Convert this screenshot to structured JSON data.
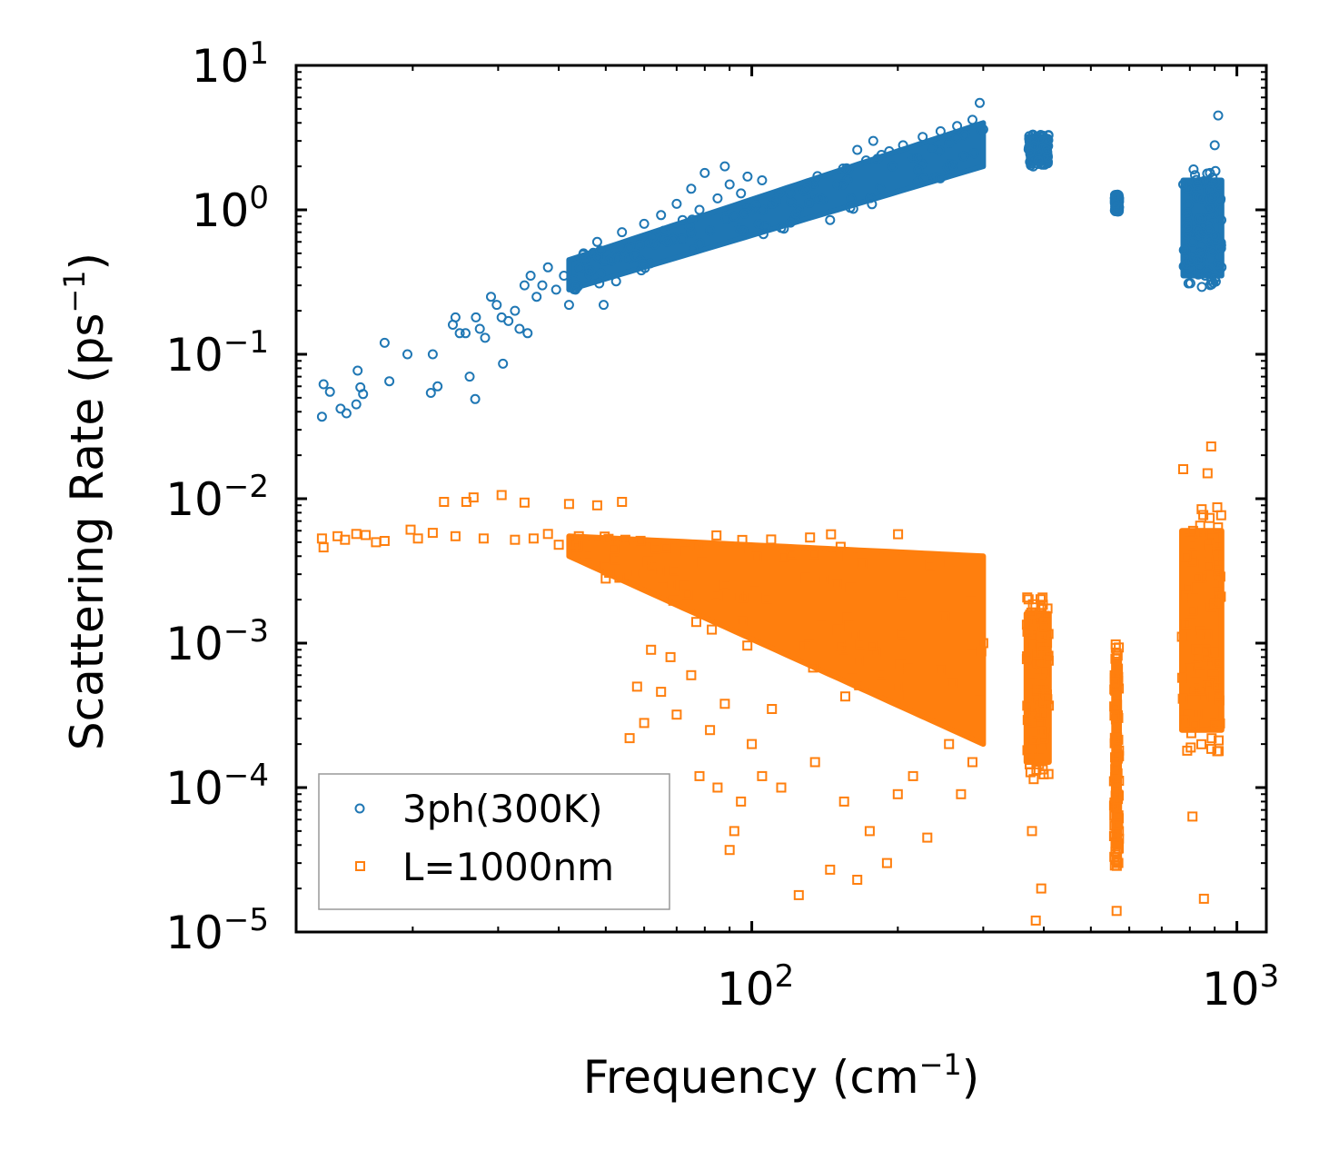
{
  "chart_data": {
    "type": "scatter",
    "title": "",
    "xlabel": "Frequency (cm",
    "xlabel_sup": "−1",
    "xlabel_end": ")",
    "ylabel": "Scattering Rate (ps",
    "ylabel_sup": "−1",
    "ylabel_end": ")",
    "xscale": "log",
    "yscale": "log",
    "xlim": [
      11.5,
      1150
    ],
    "ylim": [
      1e-05,
      10
    ],
    "x_ticks": [
      {
        "value": 100,
        "base": "10",
        "exp": "2"
      },
      {
        "value": 1000,
        "base": "10",
        "exp": "3"
      }
    ],
    "y_ticks": [
      {
        "value": 10,
        "base": "10",
        "exp": "1"
      },
      {
        "value": 1,
        "base": "10",
        "exp": "0"
      },
      {
        "value": 0.1,
        "base": "10",
        "exp": "−1"
      },
      {
        "value": 0.01,
        "base": "10",
        "exp": "−2"
      },
      {
        "value": 0.001,
        "base": "10",
        "exp": "−3"
      },
      {
        "value": 0.0001,
        "base": "10",
        "exp": "−4"
      },
      {
        "value": 1e-05,
        "base": "10",
        "exp": "−5"
      }
    ],
    "legend_position": "lower-left",
    "series": [
      {
        "name": "3ph(300K)",
        "marker": "circle",
        "color": "#1f77b4",
        "points": [
          [
            13.0,
            0.037
          ],
          [
            13.1,
            0.062
          ],
          [
            13.5,
            0.055
          ],
          [
            14.2,
            0.042
          ],
          [
            14.6,
            0.039
          ],
          [
            15.3,
            0.045
          ],
          [
            15.4,
            0.077
          ],
          [
            15.8,
            0.053
          ],
          [
            15.6,
            0.059
          ],
          [
            17.5,
            0.12
          ],
          [
            17.9,
            0.065
          ],
          [
            19.5,
            0.1
          ],
          [
            21.8,
            0.054
          ],
          [
            22.0,
            0.1
          ],
          [
            22.5,
            0.06
          ],
          [
            24.2,
            0.16
          ],
          [
            24.5,
            0.18
          ],
          [
            25.0,
            0.14
          ],
          [
            25.7,
            0.14
          ],
          [
            26.2,
            0.07
          ],
          [
            26.9,
            0.049
          ],
          [
            27.0,
            0.18
          ],
          [
            27.5,
            0.15
          ],
          [
            28.2,
            0.13
          ],
          [
            29.0,
            0.25
          ],
          [
            29.8,
            0.22
          ],
          [
            30.5,
            0.18
          ],
          [
            30.7,
            0.086
          ],
          [
            31.5,
            0.17
          ],
          [
            32.5,
            0.2
          ],
          [
            33.2,
            0.15
          ],
          [
            34.0,
            0.3
          ],
          [
            34.5,
            0.14
          ],
          [
            35.0,
            0.35
          ],
          [
            36.0,
            0.25
          ],
          [
            37.0,
            0.3
          ],
          [
            38.0,
            0.4
          ],
          [
            39.5,
            0.28
          ],
          [
            41.0,
            0.35
          ],
          [
            42.0,
            0.22
          ],
          [
            43.5,
            0.3
          ],
          [
            45.0,
            0.5
          ],
          [
            46.5,
            0.38
          ],
          [
            48.0,
            0.6
          ],
          [
            49.5,
            0.22
          ],
          [
            51.0,
            0.45
          ],
          [
            52.5,
            0.32
          ],
          [
            54.0,
            0.7
          ],
          [
            56.0,
            0.55
          ],
          [
            57.5,
            0.48
          ],
          [
            60.0,
            0.8
          ],
          [
            62.5,
            0.65
          ],
          [
            65.0,
            0.92
          ],
          [
            67.0,
            0.6
          ],
          [
            70.0,
            1.1
          ],
          [
            72.0,
            0.85
          ],
          [
            75.0,
            1.4
          ],
          [
            78.0,
            1.0
          ],
          [
            80.0,
            1.8
          ],
          [
            82.0,
            0.72
          ],
          [
            85.0,
            1.2
          ],
          [
            88.0,
            2.0
          ],
          [
            90.0,
            1.5
          ],
          [
            92.0,
            0.9
          ],
          [
            95.0,
            1.3
          ],
          [
            98.0,
            1.7
          ],
          [
            100.0,
            1.0
          ],
          [
            105.0,
            1.6
          ],
          [
            110.0,
            1.1
          ],
          [
            115.0,
            0.75
          ],
          [
            120.0,
            1.3
          ],
          [
            125.0,
            1.0
          ],
          [
            130.0,
            1.4
          ],
          [
            138.0,
            1.2
          ],
          [
            145.0,
            0.85
          ],
          [
            150.0,
            1.5
          ],
          [
            158.0,
            1.9
          ],
          [
            165.0,
            2.6
          ],
          [
            172.0,
            2.2
          ],
          [
            178.0,
            3.0
          ],
          [
            185.0,
            2.4
          ],
          [
            195.0,
            2.0
          ],
          [
            205.0,
            2.8
          ],
          [
            215.0,
            2.3
          ],
          [
            225.0,
            3.2
          ],
          [
            235.0,
            2.7
          ],
          [
            245.0,
            3.5
          ],
          [
            255.0,
            2.9
          ],
          [
            265.0,
            3.8
          ],
          [
            275.0,
            3.3
          ],
          [
            285.0,
            4.2
          ],
          [
            295.0,
            5.5
          ],
          [
            300.0,
            3.6
          ],
          [
            375.0,
            2.5
          ],
          [
            382.0,
            2.8
          ],
          [
            390.0,
            2.2
          ],
          [
            398.0,
            3.0
          ],
          [
            405.0,
            2.6
          ],
          [
            562.0,
            1.1
          ],
          [
            565.0,
            1.25
          ],
          [
            568.0,
            1.05
          ],
          [
            775.0,
            1.5
          ],
          [
            790.0,
            0.9
          ],
          [
            810.0,
            0.6
          ],
          [
            830.0,
            0.45
          ],
          [
            845.0,
            1.2
          ],
          [
            860.0,
            0.35
          ],
          [
            880.0,
            1.8
          ],
          [
            900.0,
            2.8
          ],
          [
            915.0,
            4.5
          ]
        ]
      },
      {
        "name": "L=1000nm",
        "marker": "square",
        "color": "#ff7f0e",
        "points": [
          [
            13.0,
            0.0053
          ],
          [
            13.1,
            0.0046
          ],
          [
            14.0,
            0.0055
          ],
          [
            14.5,
            0.0052
          ],
          [
            15.3,
            0.0057
          ],
          [
            16.0,
            0.0056
          ],
          [
            16.8,
            0.005
          ],
          [
            17.5,
            0.0051
          ],
          [
            19.8,
            0.0061
          ],
          [
            20.5,
            0.0053
          ],
          [
            22.0,
            0.0058
          ],
          [
            23.2,
            0.0095
          ],
          [
            24.5,
            0.0055
          ],
          [
            25.8,
            0.0095
          ],
          [
            26.7,
            0.0102
          ],
          [
            28.0,
            0.0053
          ],
          [
            30.5,
            0.0106
          ],
          [
            32.5,
            0.0052
          ],
          [
            34.0,
            0.0094
          ],
          [
            35.5,
            0.0053
          ],
          [
            38.0,
            0.0057
          ],
          [
            40.0,
            0.0048
          ],
          [
            42.0,
            0.0092
          ],
          [
            44.0,
            0.0055
          ],
          [
            46.0,
            0.0041
          ],
          [
            48.0,
            0.009
          ],
          [
            50.0,
            0.0028
          ],
          [
            52.0,
            0.0045
          ],
          [
            54.0,
            0.0095
          ],
          [
            56.0,
            0.00022
          ],
          [
            58.0,
            0.0005
          ],
          [
            60.0,
            0.00028
          ],
          [
            62.0,
            0.0009
          ],
          [
            65.0,
            0.00046
          ],
          [
            68.0,
            0.0008
          ],
          [
            70.0,
            0.00032
          ],
          [
            75.0,
            0.0006
          ],
          [
            78.0,
            0.00012
          ],
          [
            82.0,
            0.00025
          ],
          [
            85.0,
            0.0001
          ],
          [
            88.0,
            0.00038
          ],
          [
            90.0,
            3.7e-05
          ],
          [
            92.0,
            5e-05
          ],
          [
            95.0,
            8e-05
          ],
          [
            100.0,
            0.0002
          ],
          [
            105.0,
            0.00012
          ],
          [
            110.0,
            0.00035
          ],
          [
            115.0,
            0.0001
          ],
          [
            125.0,
            1.8e-05
          ],
          [
            135.0,
            0.00015
          ],
          [
            145.0,
            2.7e-05
          ],
          [
            155.0,
            8e-05
          ],
          [
            165.0,
            2.3e-05
          ],
          [
            175.0,
            5e-05
          ],
          [
            190.0,
            3e-05
          ],
          [
            200.0,
            9e-05
          ],
          [
            215.0,
            0.00012
          ],
          [
            230.0,
            4.5e-05
          ],
          [
            245.0,
            0.00065
          ],
          [
            255.0,
            0.0002
          ],
          [
            270.0,
            9e-05
          ],
          [
            285.0,
            0.00015
          ],
          [
            295.0,
            0.0004
          ],
          [
            300.0,
            0.001
          ],
          [
            370.0,
            0.0012
          ],
          [
            378.0,
            5e-05
          ],
          [
            385.0,
            1.2e-05
          ],
          [
            395.0,
            2e-05
          ],
          [
            402.0,
            0.0014
          ],
          [
            562.0,
            0.00078
          ],
          [
            565.0,
            1.4e-05
          ],
          [
            568.0,
            3e-05
          ],
          [
            775.0,
            0.016
          ],
          [
            790.0,
            0.00018
          ],
          [
            810.0,
            6.3e-05
          ],
          [
            825.0,
            0.0005
          ],
          [
            840.0,
            0.0065
          ],
          [
            855.0,
            1.7e-05
          ],
          [
            870.0,
            0.015
          ],
          [
            885.0,
            0.023
          ],
          [
            900.0,
            0.0019
          ],
          [
            915.0,
            0.0005
          ]
        ],
        "bands": [
          {
            "x": [
              42,
              300
            ],
            "y_lo": [
              0.004,
              0.0002
            ],
            "y_hi": [
              0.0055,
              0.004
            ]
          },
          {
            "x": [
              368,
              410
            ],
            "y_lo": [
              0.00015,
              0.00015
            ],
            "y_hi": [
              0.0016,
              0.0016
            ]
          },
          {
            "x": [
              558,
              572
            ],
            "y_lo": [
              4e-05,
              4e-05
            ],
            "y_hi": [
              0.00075,
              0.00075
            ]
          },
          {
            "x": [
              770,
              930
            ],
            "y_lo": [
              0.00025,
              0.00025
            ],
            "y_hi": [
              0.006,
              0.006
            ]
          }
        ]
      }
    ],
    "blue_bands": [
      {
        "x": [
          42,
          300
        ],
        "y_lo": [
          0.28,
          2.0
        ],
        "y_hi": [
          0.45,
          4.0
        ]
      },
      {
        "x": [
          372,
          410
        ],
        "y_lo": [
          2.1,
          2.1
        ],
        "y_hi": [
          3.2,
          3.2
        ]
      },
      {
        "x": [
          560,
          572
        ],
        "y_lo": [
          1.0,
          1.0
        ],
        "y_hi": [
          1.25,
          1.25
        ]
      },
      {
        "x": [
          775,
          930
        ],
        "y_lo": [
          0.35,
          0.35
        ],
        "y_hi": [
          1.6,
          1.6
        ]
      }
    ]
  }
}
